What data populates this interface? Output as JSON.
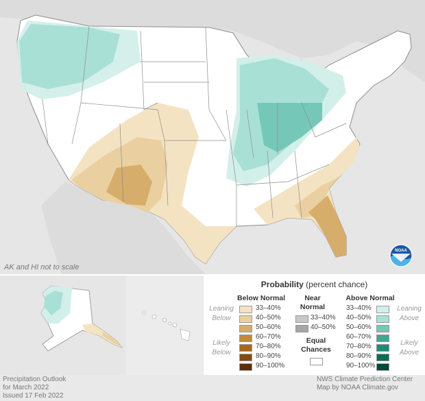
{
  "map": {
    "note": "AK and HI not to scale",
    "colors": {
      "land": "#ffffff",
      "water": "#e6e6e6",
      "border": "#8c8c8c",
      "below_33_40": "#f4e3c2",
      "below_40_50": "#ead0a0",
      "below_50_60": "#d6ad6a",
      "above_33_40": "#d3efea",
      "above_40_50": "#a9e0d6",
      "above_50_60": "#75c8b8"
    }
  },
  "legend": {
    "title_bold": "Probability",
    "title_rest": "(percent chance)",
    "below_header": "Below Normal",
    "near_header_1": "Near",
    "near_header_2": "Normal",
    "above_header": "Above Normal",
    "leaning_1": "Leaning",
    "leaning_2": "Below",
    "likely_1": "Likely",
    "likely_2": "Below",
    "leaning_above_1": "Leaning",
    "leaning_above_2": "Above",
    "likely_above_1": "Likely",
    "likely_above_2": "Above",
    "equal_1": "Equal",
    "equal_2": "Chances",
    "below_rows": [
      {
        "label": "33–40%",
        "color": "#f4e3c2"
      },
      {
        "label": "40–50%",
        "color": "#ead0a0"
      },
      {
        "label": "50–60%",
        "color": "#d6ad6a"
      },
      {
        "label": "60–70%",
        "color": "#c58a35"
      },
      {
        "label": "70–80%",
        "color": "#a8681c"
      },
      {
        "label": "80–90%",
        "color": "#844b11"
      },
      {
        "label": "90–100%",
        "color": "#5a300a"
      }
    ],
    "near_rows": [
      {
        "label": "33–40%",
        "color": "#c8c8c8"
      },
      {
        "label": "40–50%",
        "color": "#a6a6a6"
      }
    ],
    "above_rows": [
      {
        "label": "33–40%",
        "color": "#d3efea"
      },
      {
        "label": "40–50%",
        "color": "#a9e0d6"
      },
      {
        "label": "50–60%",
        "color": "#75c8b8"
      },
      {
        "label": "60–70%",
        "color": "#3fa792"
      },
      {
        "label": "70–80%",
        "color": "#1f8b74"
      },
      {
        "label": "80–90%",
        "color": "#0e6b57"
      },
      {
        "label": "90–100%",
        "color": "#05483a"
      }
    ]
  },
  "footer": {
    "left_1": "Precipitation Outlook",
    "left_2": "for March 2022",
    "left_3": "Issued 17 Feb 2022",
    "right_1": "NWS Climate Prediction Center",
    "right_2": "Map by NOAA Climate.gov"
  },
  "logo": {
    "text": "NOAA"
  }
}
